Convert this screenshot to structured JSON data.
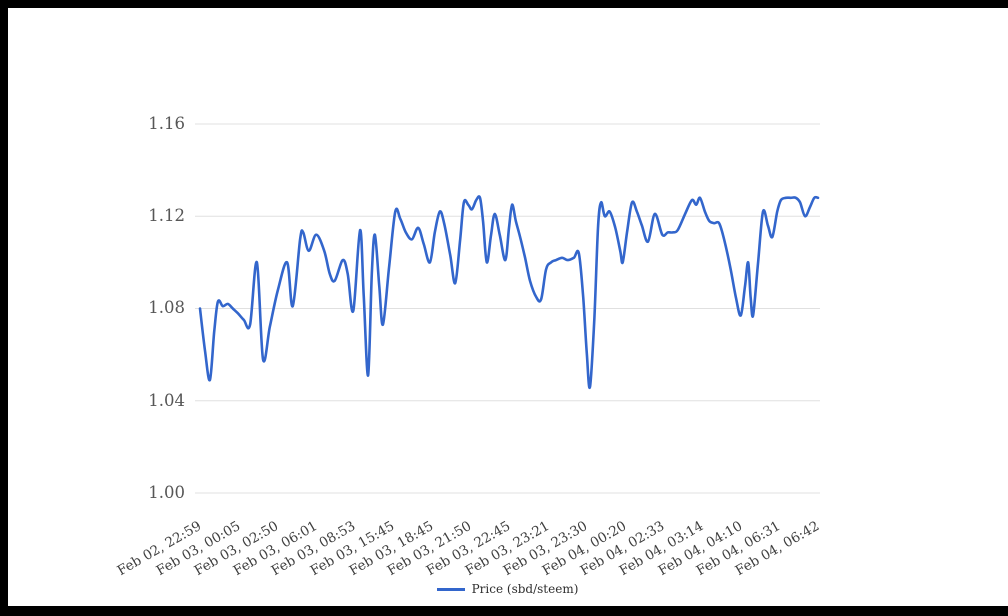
{
  "window": {
    "frame_color": "#000000",
    "background": "#ffffff"
  },
  "colors": {
    "line": "#3366cc",
    "gridline": "#e0e0e0",
    "y_label": "#565656",
    "x_label": "#3f3f3f",
    "legend_text": "#2e2e2e"
  },
  "chart_data": {
    "type": "line",
    "title": "",
    "xlabel": "",
    "ylabel": "",
    "grid": true,
    "legend_position": "bottom",
    "ylim": [
      1.0,
      1.16
    ],
    "y_tick_labels": [
      "1.00",
      "1.04",
      "1.08",
      "1.12",
      "1.16"
    ],
    "x_tick_labels": [
      "Feb 02, 22:59",
      "Feb 03, 00:05",
      "Feb 03, 02:50",
      "Feb 03, 06:01",
      "Feb 03, 08:53",
      "Feb 03, 15:45",
      "Feb 03, 18:45",
      "Feb 03, 21:50",
      "Feb 03, 22:45",
      "Feb 03, 23:21",
      "Feb 03, 23:30",
      "Feb 04, 00:20",
      "Feb 04, 02:33",
      "Feb 04, 03:14",
      "Feb 04, 04:10",
      "Feb 04, 06:31",
      "Feb 04, 06:42"
    ],
    "series": [
      {
        "name": "Price (sbd/steem)",
        "color": "#3366cc",
        "points_xfrac_value": [
          [
            0.0,
            1.08
          ],
          [
            0.008,
            1.062
          ],
          [
            0.016,
            1.049
          ],
          [
            0.023,
            1.07
          ],
          [
            0.029,
            1.083
          ],
          [
            0.037,
            1.081
          ],
          [
            0.045,
            1.082
          ],
          [
            0.053,
            1.08
          ],
          [
            0.061,
            1.078
          ],
          [
            0.071,
            1.075
          ],
          [
            0.081,
            1.073
          ],
          [
            0.092,
            1.1
          ],
          [
            0.102,
            1.058
          ],
          [
            0.113,
            1.072
          ],
          [
            0.126,
            1.088
          ],
          [
            0.141,
            1.1
          ],
          [
            0.15,
            1.081
          ],
          [
            0.162,
            1.11
          ],
          [
            0.167,
            1.113
          ],
          [
            0.176,
            1.105
          ],
          [
            0.188,
            1.112
          ],
          [
            0.201,
            1.105
          ],
          [
            0.21,
            1.095
          ],
          [
            0.218,
            1.092
          ],
          [
            0.231,
            1.101
          ],
          [
            0.239,
            1.095
          ],
          [
            0.248,
            1.079
          ],
          [
            0.259,
            1.114
          ],
          [
            0.265,
            1.085
          ],
          [
            0.272,
            1.051
          ],
          [
            0.278,
            1.095
          ],
          [
            0.283,
            1.112
          ],
          [
            0.29,
            1.09
          ],
          [
            0.296,
            1.073
          ],
          [
            0.306,
            1.098
          ],
          [
            0.316,
            1.122
          ],
          [
            0.324,
            1.119
          ],
          [
            0.333,
            1.113
          ],
          [
            0.343,
            1.11
          ],
          [
            0.353,
            1.115
          ],
          [
            0.362,
            1.108
          ],
          [
            0.372,
            1.1
          ],
          [
            0.38,
            1.113
          ],
          [
            0.388,
            1.122
          ],
          [
            0.395,
            1.117
          ],
          [
            0.405,
            1.103
          ],
          [
            0.413,
            1.091
          ],
          [
            0.421,
            1.11
          ],
          [
            0.427,
            1.126
          ],
          [
            0.434,
            1.125
          ],
          [
            0.44,
            1.123
          ],
          [
            0.447,
            1.127
          ],
          [
            0.453,
            1.128
          ],
          [
            0.458,
            1.118
          ],
          [
            0.464,
            1.1
          ],
          [
            0.471,
            1.112
          ],
          [
            0.477,
            1.121
          ],
          [
            0.485,
            1.112
          ],
          [
            0.494,
            1.101
          ],
          [
            0.5,
            1.115
          ],
          [
            0.505,
            1.125
          ],
          [
            0.511,
            1.118
          ],
          [
            0.518,
            1.111
          ],
          [
            0.526,
            1.102
          ],
          [
            0.534,
            1.092
          ],
          [
            0.544,
            1.085
          ],
          [
            0.552,
            1.084
          ],
          [
            0.56,
            1.097
          ],
          [
            0.568,
            1.1
          ],
          [
            0.576,
            1.101
          ],
          [
            0.586,
            1.102
          ],
          [
            0.595,
            1.101
          ],
          [
            0.605,
            1.102
          ],
          [
            0.613,
            1.104
          ],
          [
            0.62,
            1.085
          ],
          [
            0.626,
            1.06
          ],
          [
            0.631,
            1.046
          ],
          [
            0.638,
            1.075
          ],
          [
            0.644,
            1.115
          ],
          [
            0.649,
            1.126
          ],
          [
            0.655,
            1.12
          ],
          [
            0.663,
            1.122
          ],
          [
            0.672,
            1.115
          ],
          [
            0.68,
            1.105
          ],
          [
            0.684,
            1.1
          ],
          [
            0.691,
            1.113
          ],
          [
            0.699,
            1.126
          ],
          [
            0.707,
            1.122
          ],
          [
            0.715,
            1.116
          ],
          [
            0.725,
            1.109
          ],
          [
            0.736,
            1.121
          ],
          [
            0.748,
            1.112
          ],
          [
            0.757,
            1.113
          ],
          [
            0.765,
            1.113
          ],
          [
            0.773,
            1.114
          ],
          [
            0.785,
            1.121
          ],
          [
            0.796,
            1.127
          ],
          [
            0.803,
            1.125
          ],
          [
            0.809,
            1.128
          ],
          [
            0.817,
            1.122
          ],
          [
            0.824,
            1.118
          ],
          [
            0.832,
            1.117
          ],
          [
            0.84,
            1.117
          ],
          [
            0.848,
            1.11
          ],
          [
            0.858,
            1.098
          ],
          [
            0.867,
            1.085
          ],
          [
            0.875,
            1.077
          ],
          [
            0.882,
            1.09
          ],
          [
            0.887,
            1.1
          ],
          [
            0.891,
            1.085
          ],
          [
            0.895,
            1.077
          ],
          [
            0.903,
            1.1
          ],
          [
            0.911,
            1.122
          ],
          [
            0.919,
            1.116
          ],
          [
            0.926,
            1.111
          ],
          [
            0.934,
            1.122
          ],
          [
            0.94,
            1.127
          ],
          [
            0.948,
            1.128
          ],
          [
            0.956,
            1.128
          ],
          [
            0.964,
            1.128
          ],
          [
            0.971,
            1.126
          ],
          [
            0.979,
            1.12
          ],
          [
            0.987,
            1.124
          ],
          [
            0.994,
            1.128
          ],
          [
            1.0,
            1.128
          ]
        ]
      }
    ]
  }
}
